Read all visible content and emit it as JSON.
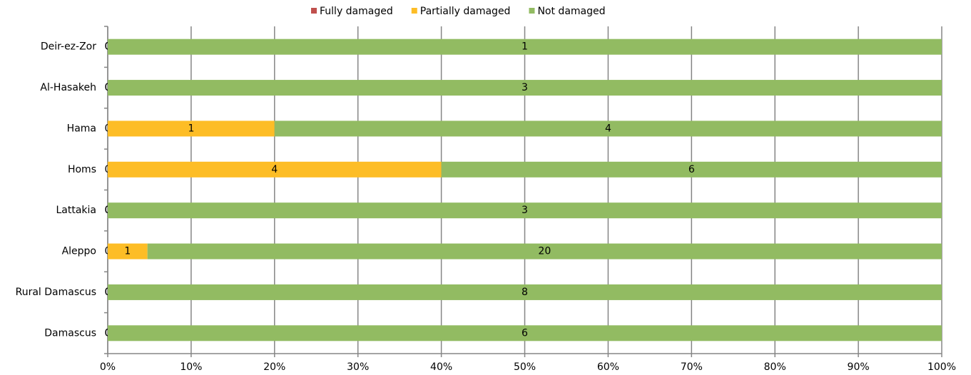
{
  "chart_data": {
    "type": "bar",
    "orientation": "horizontal",
    "stacked": "percent",
    "categories": [
      "Deir-ez-Zor",
      "Al-Hasakeh",
      "Hama",
      "Homs",
      "Lattakia",
      "Aleppo",
      "Rural Damascus",
      "Damascus"
    ],
    "series": [
      {
        "name": "Fully damaged",
        "color": "#c0504d",
        "values": [
          0,
          0,
          0,
          0,
          0,
          0,
          0,
          0
        ]
      },
      {
        "name": "Partially damaged",
        "color": "#fdbd26",
        "values": [
          0,
          0,
          1,
          4,
          0,
          1,
          0,
          0
        ]
      },
      {
        "name": "Not damaged",
        "color": "#92bb62",
        "values": [
          1,
          3,
          4,
          6,
          3,
          20,
          8,
          6
        ]
      }
    ],
    "xlim": [
      0,
      100
    ],
    "xticks": [
      {
        "value": 0,
        "label": "0%"
      },
      {
        "value": 10,
        "label": "10%"
      },
      {
        "value": 20,
        "label": "20%"
      },
      {
        "value": 30,
        "label": "30%"
      },
      {
        "value": 40,
        "label": "40%"
      },
      {
        "value": 50,
        "label": "50%"
      },
      {
        "value": 60,
        "label": "60%"
      },
      {
        "value": 70,
        "label": "70%"
      },
      {
        "value": 80,
        "label": "80%"
      },
      {
        "value": 90,
        "label": "90%"
      },
      {
        "value": 100,
        "label": "100%"
      }
    ],
    "grid": true,
    "legend": "top"
  }
}
